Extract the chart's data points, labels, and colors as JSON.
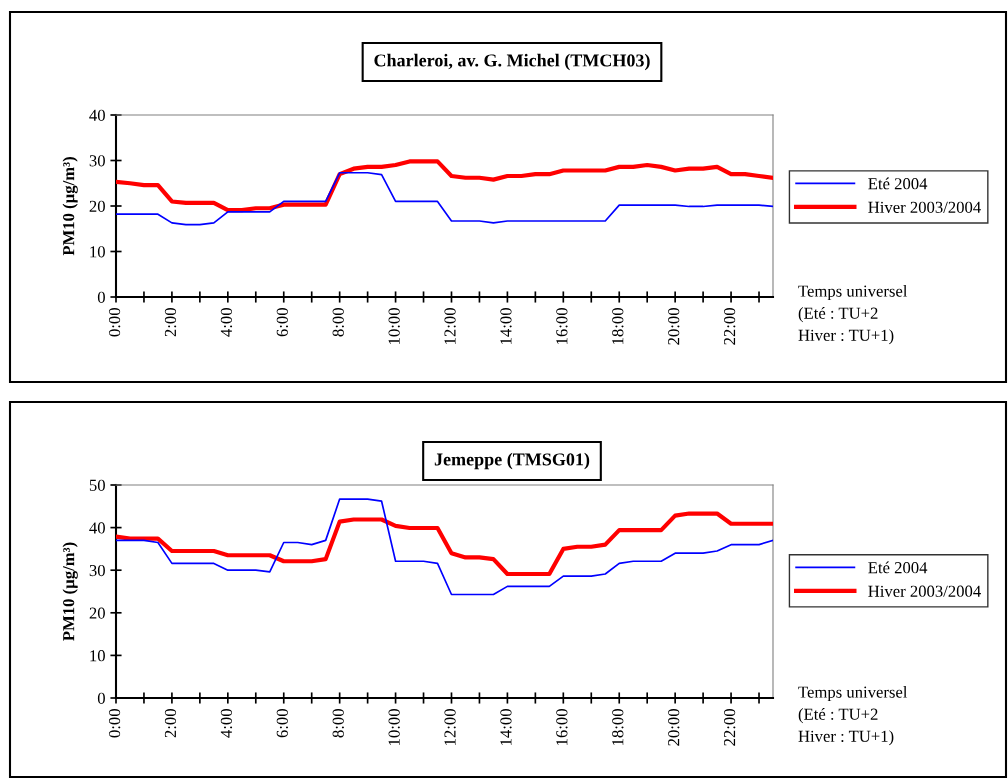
{
  "chart_data": [
    {
      "type": "line",
      "title": "Charleroi, av. G. Michel (TMCH03)",
      "ylabel": "PM10 (µg/m³)",
      "annotations": [
        "Temps universel\n(Eté : TU+2\nHiver : TU+1)"
      ],
      "x": [
        0,
        0.5,
        1,
        1.5,
        2,
        2.5,
        3,
        3.5,
        4,
        4.5,
        5,
        5.5,
        6,
        6.5,
        7,
        7.5,
        8,
        8.5,
        9,
        9.5,
        10,
        10.5,
        11,
        11.5,
        12,
        12.5,
        13,
        13.5,
        14,
        14.5,
        15,
        15.5,
        16,
        16.5,
        17,
        17.5,
        18,
        18.5,
        19,
        19.5,
        20,
        20.5,
        21,
        21.5,
        22,
        22.5,
        23,
        23.5
      ],
      "series": [
        {
          "name": "Eté 2004",
          "color": "#0000ff",
          "values": [
            18.2,
            18.2,
            18.2,
            18.2,
            16.3,
            15.9,
            15.9,
            16.3,
            18.7,
            18.7,
            18.7,
            18.7,
            21.0,
            21.0,
            21.0,
            21.0,
            27.3,
            27.3,
            27.3,
            26.9,
            21.0,
            21.0,
            21.0,
            21.0,
            16.7,
            16.7,
            16.7,
            16.3,
            16.7,
            16.7,
            16.7,
            16.7,
            16.7,
            16.7,
            16.7,
            16.7,
            20.2,
            20.2,
            20.2,
            20.2,
            20.2,
            19.9,
            19.9,
            20.2,
            20.2,
            20.2,
            20.2,
            19.9
          ]
        },
        {
          "name": "Hiver 2003/2004",
          "color": "#ff0000",
          "values": [
            25.3,
            25.0,
            24.6,
            24.6,
            21.0,
            20.7,
            20.7,
            20.7,
            19.1,
            19.1,
            19.5,
            19.5,
            20.3,
            20.3,
            20.3,
            20.3,
            27.0,
            28.2,
            28.6,
            28.6,
            29.0,
            29.8,
            29.8,
            29.8,
            26.6,
            26.2,
            26.2,
            25.8,
            26.6,
            26.6,
            27.0,
            27.0,
            27.8,
            27.8,
            27.8,
            27.8,
            28.6,
            28.6,
            29.0,
            28.6,
            27.8,
            28.2,
            28.2,
            28.6,
            27.0,
            27.0,
            26.6,
            26.2
          ]
        }
      ],
      "xlim": [
        0,
        23.5
      ],
      "ylim": [
        0,
        40
      ],
      "yticks": [
        0,
        10,
        20,
        30,
        40
      ],
      "xticks": [
        {
          "value": 0,
          "label": "0:00"
        },
        {
          "value": 1,
          "label": null
        },
        {
          "value": 2,
          "label": "2:00"
        },
        {
          "value": 3,
          "label": null
        },
        {
          "value": 4,
          "label": "4:00"
        },
        {
          "value": 5,
          "label": null
        },
        {
          "value": 6,
          "label": "6:00"
        },
        {
          "value": 7,
          "label": null
        },
        {
          "value": 8,
          "label": "8:00"
        },
        {
          "value": 9,
          "label": null
        },
        {
          "value": 10,
          "label": "10:00"
        },
        {
          "value": 11,
          "label": null
        },
        {
          "value": 12,
          "label": "12:00"
        },
        {
          "value": 13,
          "label": null
        },
        {
          "value": 14,
          "label": "14:00"
        },
        {
          "value": 15,
          "label": null
        },
        {
          "value": 16,
          "label": "16:00"
        },
        {
          "value": 17,
          "label": null
        },
        {
          "value": 18,
          "label": "18:00"
        },
        {
          "value": 19,
          "label": null
        },
        {
          "value": 20,
          "label": "20:00"
        },
        {
          "value": 21,
          "label": null
        },
        {
          "value": 22,
          "label": "22:00"
        },
        {
          "value": 23,
          "label": null
        }
      ],
      "legend": "right",
      "grid": false,
      "marker": "none",
      "line_style": "solid"
    },
    {
      "type": "line",
      "title": "Jemeppe (TMSG01)",
      "ylabel": "PM10 (µg/m³)",
      "annotations": [
        "Temps universel\n(Eté : TU+2\nHiver : TU+1)"
      ],
      "x": [
        0,
        0.5,
        1,
        1.5,
        2,
        2.5,
        3,
        3.5,
        4,
        4.5,
        5,
        5.5,
        6,
        6.5,
        7,
        7.5,
        8,
        8.5,
        9,
        9.5,
        10,
        10.5,
        11,
        11.5,
        12,
        12.5,
        13,
        13.5,
        14,
        14.5,
        15,
        15.5,
        16,
        16.5,
        17,
        17.5,
        18,
        18.5,
        19,
        19.5,
        20,
        20.5,
        21,
        21.5,
        22,
        22.5,
        23,
        23.5
      ],
      "series": [
        {
          "name": "Eté 2004",
          "color": "#0000ff",
          "values": [
            37.0,
            37.0,
            37.0,
            36.5,
            31.6,
            31.6,
            31.6,
            31.6,
            30.0,
            30.0,
            30.0,
            29.6,
            36.5,
            36.5,
            36.0,
            37.0,
            46.7,
            46.7,
            46.7,
            46.2,
            32.1,
            32.1,
            32.1,
            31.6,
            24.3,
            24.3,
            24.3,
            24.3,
            26.2,
            26.2,
            26.2,
            26.2,
            28.6,
            28.6,
            28.6,
            29.1,
            31.6,
            32.1,
            32.1,
            32.1,
            34.0,
            34.0,
            34.0,
            34.5,
            36.0,
            36.0,
            36.0,
            37.0
          ]
        },
        {
          "name": "Hiver 2003/2004",
          "color": "#ff0000",
          "values": [
            37.9,
            37.4,
            37.4,
            37.4,
            34.5,
            34.5,
            34.5,
            34.5,
            33.5,
            33.5,
            33.5,
            33.5,
            32.1,
            32.1,
            32.1,
            32.6,
            41.4,
            41.9,
            41.9,
            41.9,
            40.4,
            39.9,
            39.9,
            39.9,
            34.0,
            33.0,
            33.0,
            32.6,
            29.1,
            29.1,
            29.1,
            29.1,
            35.0,
            35.5,
            35.5,
            36.0,
            39.4,
            39.4,
            39.4,
            39.4,
            42.8,
            43.3,
            43.3,
            43.3,
            40.9,
            40.9,
            40.9,
            40.9
          ]
        }
      ],
      "xlim": [
        0,
        23.5
      ],
      "ylim": [
        0,
        50
      ],
      "yticks": [
        0,
        10,
        20,
        30,
        40,
        50
      ],
      "xticks": [
        {
          "value": 0,
          "label": "0:00"
        },
        {
          "value": 1,
          "label": null
        },
        {
          "value": 2,
          "label": "2:00"
        },
        {
          "value": 3,
          "label": null
        },
        {
          "value": 4,
          "label": "4:00"
        },
        {
          "value": 5,
          "label": null
        },
        {
          "value": 6,
          "label": "6:00"
        },
        {
          "value": 7,
          "label": null
        },
        {
          "value": 8,
          "label": "8:00"
        },
        {
          "value": 9,
          "label": null
        },
        {
          "value": 10,
          "label": "10:00"
        },
        {
          "value": 11,
          "label": null
        },
        {
          "value": 12,
          "label": "12:00"
        },
        {
          "value": 13,
          "label": null
        },
        {
          "value": 14,
          "label": "14:00"
        },
        {
          "value": 15,
          "label": null
        },
        {
          "value": 16,
          "label": "16:00"
        },
        {
          "value": 17,
          "label": null
        },
        {
          "value": 18,
          "label": "18:00"
        },
        {
          "value": 19,
          "label": null
        },
        {
          "value": 20,
          "label": "20:00"
        },
        {
          "value": 21,
          "label": null
        },
        {
          "value": 22,
          "label": "22:00"
        },
        {
          "value": 23,
          "label": null
        }
      ],
      "legend": "right",
      "grid": false,
      "marker": "none",
      "line_style": "solid"
    }
  ]
}
